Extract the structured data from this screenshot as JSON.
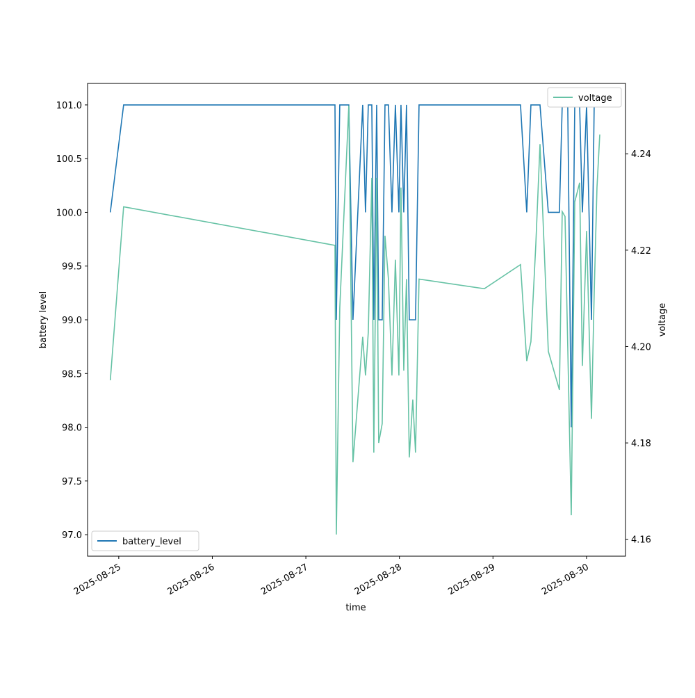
{
  "chart_data": {
    "type": "line",
    "xlabel": "time",
    "ylabel": "battery level",
    "y2label": "voltage",
    "x": [
      "2025-08-24 21:50",
      "2025-08-25 01:15",
      "2025-08-27 07:28",
      "2025-08-27 07:49",
      "2025-08-27 08:42",
      "2025-08-27 11:01",
      "2025-08-27 12:05",
      "2025-08-27 14:35",
      "2025-08-27 15:18",
      "2025-08-27 16:01",
      "2025-08-27 16:55",
      "2025-08-27 17:26",
      "2025-08-27 18:10",
      "2025-08-27 18:41",
      "2025-08-27 19:35",
      "2025-08-27 20:18",
      "2025-08-27 21:11",
      "2025-08-27 22:05",
      "2025-08-27 22:58",
      "2025-08-27 23:52",
      "2025-08-28 00:24",
      "2025-08-28 01:07",
      "2025-08-28 01:49",
      "2025-08-28 02:32",
      "2025-08-28 03:26",
      "2025-08-28 04:08",
      "2025-08-28 05:02",
      "2025-08-28 21:47",
      "2025-08-29 07:04",
      "2025-08-29 08:40",
      "2025-08-29 09:44",
      "2025-08-29 10:59",
      "2025-08-29 12:04",
      "2025-08-29 14:12",
      "2025-08-29 17:03",
      "2025-08-29 17:46",
      "2025-08-29 18:29",
      "2025-08-29 19:11",
      "2025-08-29 20:05",
      "2025-08-29 20:59",
      "2025-08-29 22:14",
      "2025-08-29 22:56",
      "2025-08-30 00:01",
      "2025-08-30 01:16",
      "2025-08-30 01:58",
      "2025-08-30 02:41",
      "2025-08-30 03:24"
    ],
    "series": [
      {
        "name": "battery_level",
        "color": "#1f77b4",
        "axis": "y",
        "legend": "lower left",
        "values": [
          100,
          101,
          101,
          99,
          101,
          101,
          99,
          101,
          100,
          101,
          101,
          99,
          101,
          99,
          99,
          101,
          101,
          100,
          101,
          100,
          101,
          100,
          101,
          99,
          99,
          99,
          101,
          101,
          101,
          100,
          101,
          101,
          101,
          100,
          100,
          101,
          101,
          101,
          98,
          101,
          101,
          100,
          101,
          99,
          101,
          101,
          101
        ]
      },
      {
        "name": "voltage",
        "color": "#66c2a5",
        "axis": "y2",
        "legend": "upper right",
        "values": [
          4.193,
          4.229,
          4.221,
          4.161,
          4.208,
          4.25,
          4.176,
          4.202,
          4.194,
          4.203,
          4.235,
          4.178,
          4.235,
          4.18,
          4.184,
          4.223,
          4.214,
          4.194,
          4.218,
          4.194,
          4.233,
          4.195,
          4.214,
          4.177,
          4.189,
          4.178,
          4.214,
          4.212,
          4.217,
          4.197,
          4.201,
          4.221,
          4.242,
          4.199,
          4.191,
          4.228,
          4.227,
          4.2,
          4.165,
          4.23,
          4.234,
          4.196,
          4.224,
          4.185,
          4.211,
          4.233,
          4.244
        ]
      }
    ],
    "xlim": [
      "2025-08-24 16:00",
      "2025-08-30 10:00"
    ],
    "xticks": [
      "2025-08-25",
      "2025-08-26",
      "2025-08-27",
      "2025-08-28",
      "2025-08-29",
      "2025-08-30"
    ],
    "ylim": [
      96.8,
      101.2
    ],
    "yticks": [
      {
        "value": 97,
        "label": "97.0"
      },
      97.5,
      {
        "value": 98,
        "label": "98.0"
      },
      98.5,
      {
        "value": 99,
        "label": "99.0"
      },
      99.5,
      {
        "value": 100,
        "label": "100.0"
      },
      100.5,
      {
        "value": 101,
        "label": "101.0"
      }
    ],
    "y2lim": [
      4.1565,
      4.2546
    ],
    "y2ticks": [
      4.16,
      4.18,
      {
        "value": 4.2,
        "label": "4.20"
      },
      4.22,
      4.24
    ]
  }
}
